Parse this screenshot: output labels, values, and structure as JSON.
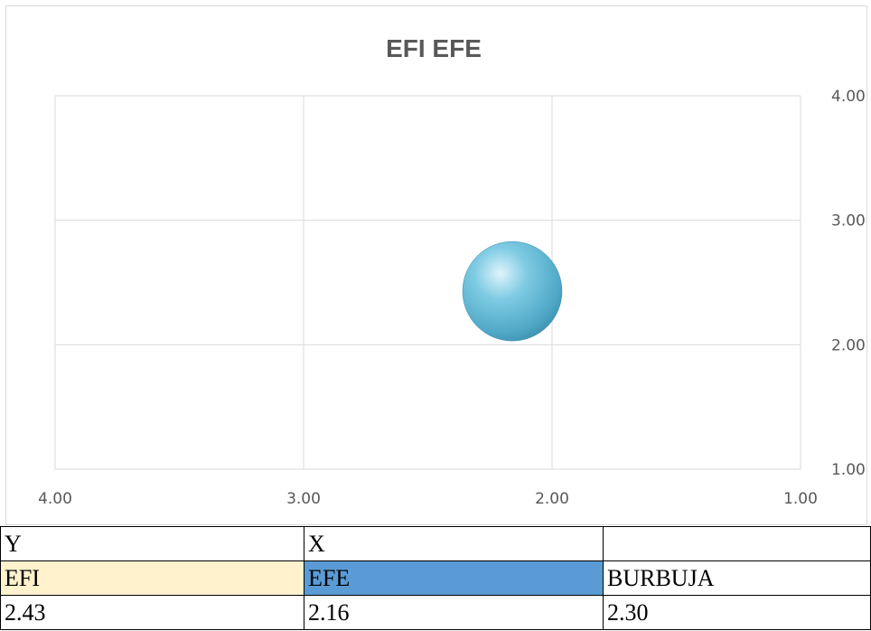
{
  "chart_data": {
    "type": "bubble",
    "title": "EFI EFE",
    "xlim": [
      4.0,
      1.0
    ],
    "ylim": [
      1.0,
      4.0
    ],
    "x_ticks": [
      "4.00",
      "3.00",
      "2.00",
      "1.00"
    ],
    "y_ticks": [
      "1.00",
      "2.00",
      "3.00",
      "4.00"
    ],
    "grid": true,
    "points": [
      {
        "x": 2.16,
        "y": 2.43,
        "size": 2.3
      }
    ],
    "bubble_color": "#5bb5d5"
  },
  "table": {
    "rows": [
      [
        "Y",
        "X",
        ""
      ],
      [
        "EFI",
        "EFE",
        "BURBUJA"
      ],
      [
        "2.43",
        "2.16",
        "2.30"
      ]
    ],
    "colors": {
      "efi_bg": "#fff2cc",
      "efe_bg": "#5b9bd5"
    }
  }
}
